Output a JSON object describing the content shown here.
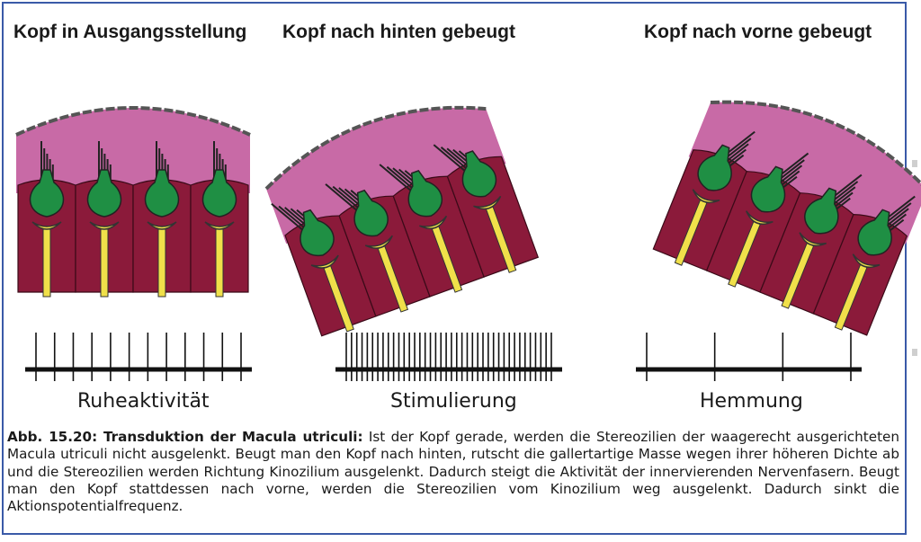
{
  "panels": [
    {
      "title": "Kopf in Ausgangsstellung",
      "activity_label": "Ruheaktivität"
    },
    {
      "title": "Kopf nach hinten gebeugt",
      "activity_label": "Stimulierung"
    },
    {
      "title": "Kopf nach vorne gebeugt",
      "activity_label": "Hemmung"
    }
  ],
  "caption": {
    "label": "Abb. 15.20: Transduktion der Macula utriculi:",
    "text": " Ist der Kopf gerade, werden die Stereozilien der waagerecht ausgerichteten Macula utriculi nicht ausgelenkt. Beugt man den Kopf nach hinten, rutscht die gallertartige Masse wegen ihrer höheren Dichte ab und die Stereozilien werden Richtung Kinozilium ausgelenkt. Dadurch steigt die Aktivität der innervierenden Nervenfasern. Beugt man den Kopf stattdessen nach vorne, werden die Stereozilien vom Kinozilium weg ausgelenkt. Dadurch sinkt die Aktionspotentialfrequenz."
  },
  "colors": {
    "frame": "#3a5aa8",
    "gel": "#c86aa6",
    "gel_border": "#555555",
    "cell": "#8b1a3a",
    "hair_cell": "#1f8f44",
    "nerve": "#f0e04a",
    "cilia": "#222222",
    "spike": "#111111"
  }
}
